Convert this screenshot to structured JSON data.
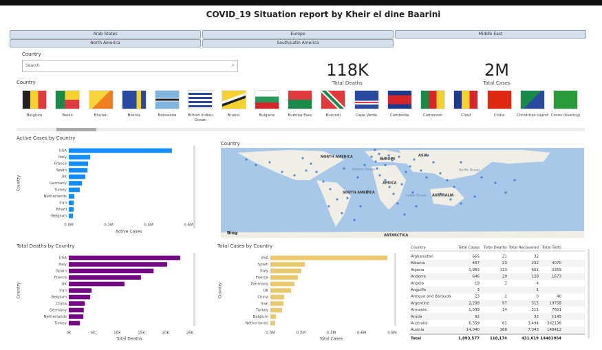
{
  "header": {
    "title": "COVID_19 Situation report  by Kheir el  dine Baarini"
  },
  "region_buttons": [
    "Arab States",
    "Europe",
    "Middle East",
    "North America",
    "South/Latin America"
  ],
  "country_slicer": {
    "label": "Country",
    "placeholder": "Search"
  },
  "kpis": [
    {
      "value": "118K",
      "label": "Total Deaths"
    },
    {
      "value": "2M",
      "label": "Total Cases"
    }
  ],
  "flags": {
    "label": "Country",
    "items": [
      "Belgium",
      "Benin",
      "Bhutan",
      "Bosnia",
      "Botswana",
      "British Indian Ocean",
      "Brunei",
      "Bulgaria",
      "Burkina Faso",
      "Burundi",
      "Cape Verde",
      "Cambodia",
      "Cameroon",
      "Chad",
      "China",
      "Christmas Island",
      "Cocos (Keeling)"
    ]
  },
  "chart_data": [
    {
      "type": "bar",
      "orientation": "horizontal",
      "title": "Active Cases by Country",
      "x_label": "Active Cases",
      "y_label": "Country",
      "color": "#118dff",
      "categories": [
        "USA",
        "Italy",
        "France",
        "Spain",
        "UK",
        "Germany",
        "Turkey",
        "Netherlands",
        "Iran",
        "Brazil",
        "Belgium"
      ],
      "values": [
        517000,
        107000,
        97000,
        93000,
        83000,
        66000,
        55000,
        28000,
        24000,
        24000,
        21000
      ],
      "xlim": [
        0,
        600000
      ],
      "xticks": [
        {
          "value": 0,
          "label": "0.0M"
        },
        {
          "value": 200000,
          "label": "0.2M"
        },
        {
          "value": 400000,
          "label": "0.4M"
        },
        {
          "value": 600000,
          "label": "0.6M"
        }
      ]
    },
    {
      "type": "bar",
      "orientation": "horizontal",
      "title": "Total Deaths by Country",
      "x_label": "Total Deaths",
      "y_label": "Country",
      "color": "#750985",
      "categories": [
        "USA",
        "Italy",
        "Spain",
        "France",
        "UK",
        "Iran",
        "Belgium",
        "China",
        "Germany",
        "Netherlands",
        "Turkey"
      ],
      "values": [
        23000,
        20300,
        17500,
        14900,
        11500,
        4700,
        4400,
        3300,
        3100,
        3000,
        2300
      ],
      "xlim": [
        0,
        25000
      ],
      "xticks": [
        {
          "value": 0,
          "label": "0K"
        },
        {
          "value": 5000,
          "label": "5K"
        },
        {
          "value": 10000,
          "label": "10K"
        },
        {
          "value": 15000,
          "label": "15K"
        },
        {
          "value": 20000,
          "label": "20K"
        },
        {
          "value": 25000,
          "label": "25K"
        }
      ]
    },
    {
      "type": "bar",
      "orientation": "horizontal",
      "title": "Total Cases by Country",
      "x_label": "Total Cases",
      "y_label": "Country",
      "color": "#e8ca6c",
      "categories": [
        "USA",
        "Spain",
        "Italy",
        "France",
        "Germany",
        "UK",
        "China",
        "Iran",
        "Turkey",
        "Belgium",
        "Netherlands"
      ],
      "values": [
        768000,
        226000,
        203000,
        181000,
        158000,
        136000,
        90000,
        86000,
        77000,
        36000,
        32000
      ],
      "xlim": [
        0,
        800000
      ],
      "xticks": [
        {
          "value": 0,
          "label": "0.0M"
        },
        {
          "value": 200000,
          "label": "0.2M"
        },
        {
          "value": 400000,
          "label": "0.4M"
        },
        {
          "value": 600000,
          "label": "0.6M"
        },
        {
          "value": 800000,
          "label": "0.8M"
        }
      ]
    }
  ],
  "map": {
    "title": "Country",
    "labels": [
      "NORTH AMERICA",
      "EUROPE",
      "ASIA",
      "AFRICA",
      "SOUTH AMERICA",
      "AUSTRALIA",
      "ANTARCTICA",
      "Atlantic Ocean",
      "Pacific Ocean",
      "Indian Ocean"
    ],
    "brand": "Bing"
  },
  "table": {
    "columns": [
      "Country",
      "Total Cases",
      "Total Deaths",
      "Total Recovered",
      "Total Tests"
    ],
    "rows": [
      [
        "Afghanistan",
        "665",
        "21",
        "32",
        null
      ],
      [
        "Albania",
        "467",
        "23",
        "232",
        "4070"
      ],
      [
        "Algeria",
        "1,983",
        "313",
        "601",
        "3359"
      ],
      [
        "Andorra",
        "646",
        "29",
        "128",
        "1673"
      ],
      [
        "Angola",
        "19",
        "2",
        "4",
        null
      ],
      [
        "Anguilla",
        "3",
        null,
        "1",
        null
      ],
      [
        "Antigua and Barbuda",
        "23",
        "2",
        "0",
        "40"
      ],
      [
        "Argentine",
        "2,208",
        "97",
        "515",
        "19758"
      ],
      [
        "Armenia",
        "1,039",
        "14",
        "211",
        "7651"
      ],
      [
        "Aruba",
        "92",
        null,
        "32",
        "1145"
      ],
      [
        "Australia",
        "6,359",
        "61",
        "3,494",
        "362136"
      ],
      [
        "Austria",
        "14,040",
        "368",
        "7,343",
        "148412"
      ]
    ],
    "total": [
      "Total",
      "1,893,577",
      "118,174",
      "431,619",
      "14481964"
    ]
  }
}
